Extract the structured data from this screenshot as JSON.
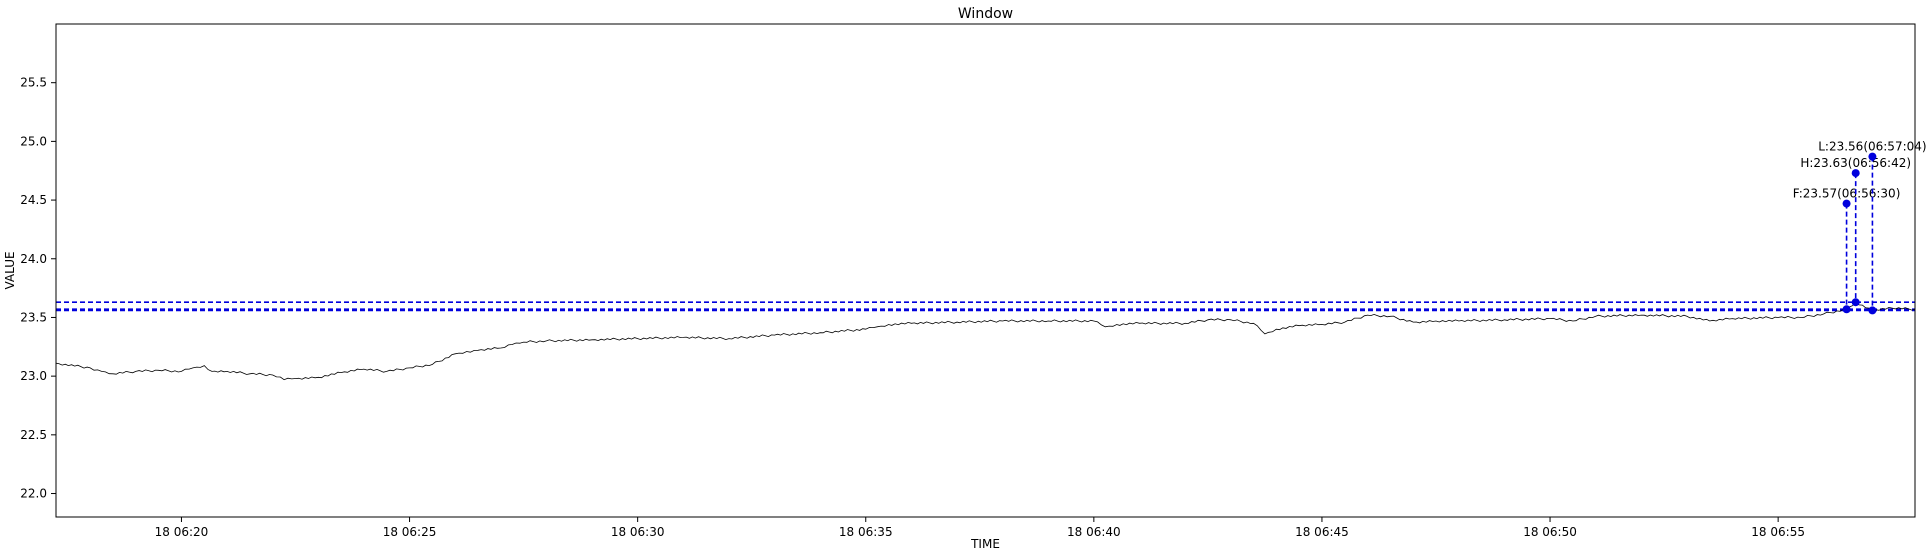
{
  "chart_data": {
    "type": "line",
    "title": "Window",
    "xlabel": "TIME",
    "ylabel": "VALUE",
    "xlim": [
      "06:17:15",
      "06:58:00"
    ],
    "ylim": [
      21.8,
      26.0
    ],
    "grid": false,
    "x_ticks": [
      {
        "t": "06:20:00",
        "label": "18 06:20"
      },
      {
        "t": "06:25:00",
        "label": "18 06:25"
      },
      {
        "t": "06:30:00",
        "label": "18 06:30"
      },
      {
        "t": "06:35:00",
        "label": "18 06:35"
      },
      {
        "t": "06:40:00",
        "label": "18 06:40"
      },
      {
        "t": "06:45:00",
        "label": "18 06:45"
      },
      {
        "t": "06:50:00",
        "label": "18 06:50"
      },
      {
        "t": "06:55:00",
        "label": "18 06:55"
      }
    ],
    "y_ticks": [
      22.0,
      22.5,
      23.0,
      23.5,
      24.0,
      24.5,
      25.0,
      25.5
    ],
    "y_tick_labels": [
      "22.0",
      "22.5",
      "23.0",
      "23.5",
      "24.0",
      "24.5",
      "25.0",
      "25.5"
    ],
    "series": [
      {
        "color": "#000000",
        "x": [
          "06:17:15",
          "06:18:00",
          "06:18:15",
          "06:18:30",
          "06:19:00",
          "06:19:30",
          "06:20:00",
          "06:20:15",
          "06:20:30",
          "06:20:40",
          "06:21:00",
          "06:21:30",
          "06:22:00",
          "06:22:15",
          "06:22:30",
          "06:23:00",
          "06:23:30",
          "06:24:00",
          "06:24:30",
          "06:25:00",
          "06:25:30",
          "06:26:00",
          "06:26:15",
          "06:26:30",
          "06:27:00",
          "06:27:15",
          "06:27:30",
          "06:28:00",
          "06:29:00",
          "06:30:00",
          "06:31:00",
          "06:32:00",
          "06:33:00",
          "06:34:00",
          "06:35:00",
          "06:35:15",
          "06:35:30",
          "06:36:00",
          "06:37:00",
          "06:38:00",
          "06:39:00",
          "06:40:00",
          "06:40:15",
          "06:40:30",
          "06:41:00",
          "06:42:00",
          "06:42:30",
          "06:43:00",
          "06:43:30",
          "06:43:45",
          "06:44:00",
          "06:44:30",
          "06:45:00",
          "06:45:30",
          "06:46:00",
          "06:46:30",
          "06:47:00",
          "06:47:30",
          "06:48:00",
          "06:49:00",
          "06:50:00",
          "06:50:30",
          "06:51:00",
          "06:52:00",
          "06:53:00",
          "06:53:30",
          "06:54:00",
          "06:55:00",
          "06:55:30",
          "06:56:00",
          "06:56:30",
          "06:56:42",
          "06:57:04",
          "06:57:30",
          "06:58:00"
        ],
        "y": [
          23.11,
          23.07,
          23.04,
          23.02,
          23.04,
          23.05,
          23.04,
          23.07,
          23.09,
          23.04,
          23.04,
          23.02,
          23.01,
          22.97,
          22.98,
          22.99,
          23.03,
          23.06,
          23.04,
          23.07,
          23.1,
          23.19,
          23.21,
          23.22,
          23.24,
          23.27,
          23.29,
          23.3,
          23.31,
          23.32,
          23.33,
          23.32,
          23.35,
          23.37,
          23.4,
          23.42,
          23.44,
          23.45,
          23.46,
          23.47,
          23.47,
          23.47,
          23.42,
          23.44,
          23.45,
          23.45,
          23.48,
          23.48,
          23.45,
          23.36,
          23.4,
          23.43,
          23.44,
          23.46,
          23.52,
          23.51,
          23.46,
          23.47,
          23.47,
          23.48,
          23.49,
          23.47,
          23.51,
          23.52,
          23.51,
          23.47,
          23.49,
          23.5,
          23.5,
          23.53,
          23.57,
          23.63,
          23.56,
          23.58,
          23.57
        ]
      }
    ],
    "hlines": [
      {
        "y": 23.63,
        "color": "#0000dd",
        "style": "dashed"
      },
      {
        "y": 23.57,
        "color": "#0000dd",
        "style": "dashed"
      },
      {
        "y": 23.56,
        "color": "#0000dd",
        "style": "dashed"
      }
    ],
    "markers": [
      {
        "t": "06:56:30",
        "y": 23.57,
        "top": 24.47,
        "label": "F:23.57(06:56:30)",
        "color": "#0000dd"
      },
      {
        "t": "06:56:42",
        "y": 23.63,
        "top": 24.73,
        "label": "H:23.63(06:56:42)",
        "color": "#0000dd"
      },
      {
        "t": "06:57:04",
        "y": 23.56,
        "top": 24.87,
        "label": "L:23.56(06:57:04)",
        "color": "#0000dd"
      }
    ]
  }
}
